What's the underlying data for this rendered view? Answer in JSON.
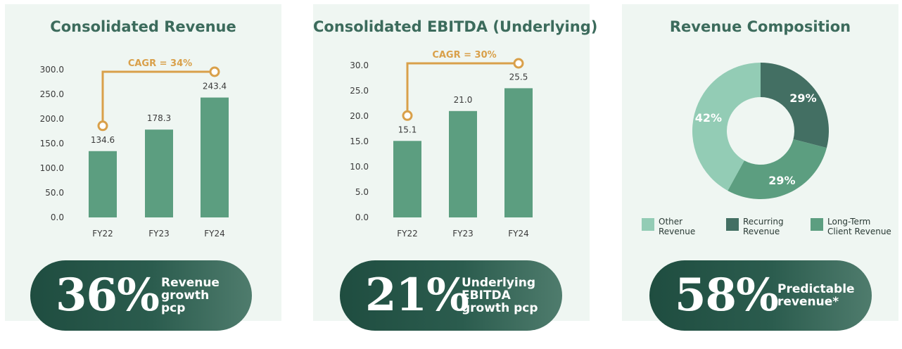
{
  "panels": [
    {
      "title": "Consolidated Revenue",
      "kpi": {
        "value": "36%",
        "label": "Revenue\ngrowth\npcp"
      }
    },
    {
      "title": "Consolidated EBITDA (Underlying)",
      "kpi": {
        "value": "21%",
        "label": "Underlying\nEBITDA\ngrowth pcp"
      }
    },
    {
      "title": "Revenue Composition",
      "kpi": {
        "value": "58%",
        "label": "Predictable\nrevenue*"
      }
    }
  ],
  "chart_data": [
    {
      "type": "bar",
      "title": "Consolidated Revenue",
      "categories": [
        "FY22",
        "FY23",
        "FY24"
      ],
      "values": [
        134.6,
        178.3,
        243.4
      ],
      "value_labels": [
        "134.6",
        "178.3",
        "243.4"
      ],
      "yticks": [
        "0.0",
        "50.0",
        "100.0",
        "150.0",
        "200.0",
        "250.0",
        "300.0"
      ],
      "ylim": [
        0,
        300
      ],
      "annotation": "CAGR = 34%",
      "bar_color": "#5c9e80",
      "annotation_color": "#d9a04a"
    },
    {
      "type": "bar",
      "title": "Consolidated EBITDA (Underlying)",
      "categories": [
        "FY22",
        "FY23",
        "FY24"
      ],
      "values": [
        15.1,
        21.0,
        25.5
      ],
      "value_labels": [
        "15.1",
        "21.0",
        "25.5"
      ],
      "yticks": [
        "0.0",
        "5.0",
        "10.0",
        "15.0",
        "20.0",
        "25.0",
        "30.0"
      ],
      "ylim": [
        0,
        30
      ],
      "annotation": "CAGR = 30%",
      "bar_color": "#5c9e80",
      "annotation_color": "#d9a04a"
    },
    {
      "type": "pie",
      "title": "Revenue Composition",
      "donut": true,
      "slices": [
        {
          "name": "Recurring Revenue",
          "legend": "Recurring\nRevenue",
          "value": 29,
          "label": "29%",
          "color": "#436f63"
        },
        {
          "name": "Long-Term Client Revenue",
          "legend": "Long-Term\nClient Revenue",
          "value": 29,
          "label": "29%",
          "color": "#5c9e80"
        },
        {
          "name": "Other Revenue",
          "legend": "Other\nRevenue",
          "value": 42,
          "label": "42%",
          "color": "#93ccb5"
        }
      ],
      "legend_order": [
        2,
        0,
        1
      ],
      "legend_position": "bottom"
    }
  ]
}
